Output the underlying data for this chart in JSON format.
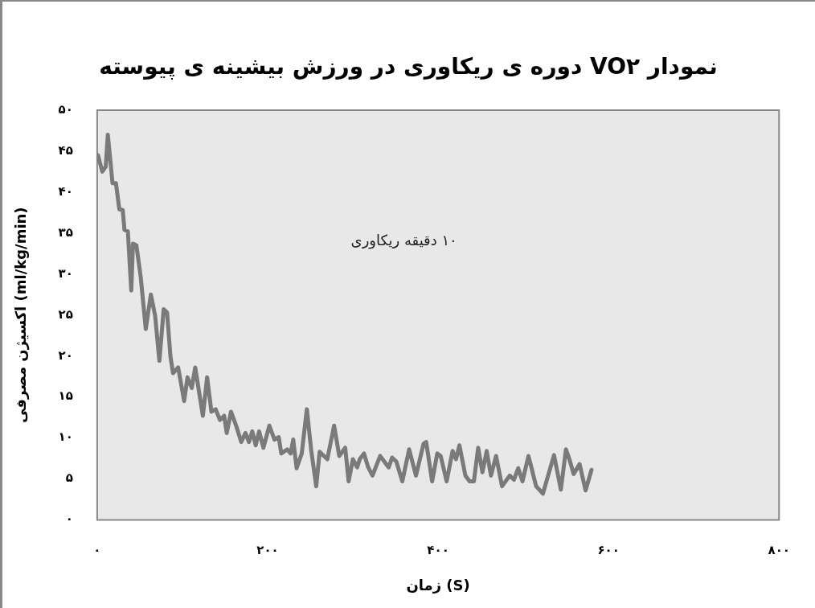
{
  "chart_data": {
    "type": "line",
    "title": "نمودار VO۲ دوره ی ریکاوری در ورزش بیشینه ی پیوسته",
    "xlabel": "زمان (S)",
    "ylabel": "اکسیژن مصرفی (ml/kg/min)",
    "annotations": [
      "۱۰ دقیقه ریکاوری"
    ],
    "xlim": [
      0,
      800
    ],
    "xticks": [
      {
        "value": 0,
        "label": "۰"
      },
      {
        "value": 200,
        "label": "۲۰۰"
      },
      {
        "value": 400,
        "label": "۴۰۰"
      },
      {
        "value": 600,
        "label": "۶۰۰"
      },
      {
        "value": 800,
        "label": "۸۰۰"
      }
    ],
    "ylim": [
      0,
      50
    ],
    "yticks": [
      {
        "value": 0,
        "label": "۰"
      },
      {
        "value": 5,
        "label": "۵"
      },
      {
        "value": 10,
        "label": "۱۰"
      },
      {
        "value": 15,
        "label": "۱۵"
      },
      {
        "value": 20,
        "label": "۲۰"
      },
      {
        "value": 25,
        "label": "۲۵"
      },
      {
        "value": 30,
        "label": "۳۰"
      },
      {
        "value": 35,
        "label": "۳۵"
      },
      {
        "value": 40,
        "label": "۴۰"
      },
      {
        "value": 45,
        "label": "۴۵"
      },
      {
        "value": 50,
        "label": "۵۰"
      }
    ],
    "grid": false,
    "legend": false,
    "marker": "none",
    "line_style": "solid",
    "series": [
      {
        "color": "#7a7a7a",
        "x": [
          1,
          6,
          10,
          12.5,
          18,
          22,
          26,
          30,
          32,
          36,
          40,
          42,
          46,
          51,
          57,
          63,
          68,
          73,
          78,
          82,
          86,
          89,
          95,
          102,
          106,
          111,
          115,
          124,
          129,
          134,
          139,
          144,
          149,
          152,
          157,
          163,
          169,
          174,
          178,
          182,
          186,
          190,
          195,
          202,
          208,
          213,
          216,
          223,
          227,
          230,
          234,
          240,
          246,
          251,
          257,
          261,
          270,
          278,
          284,
          291,
          295,
          300,
          305,
          308,
          313,
          318,
          323,
          332,
          342,
          346,
          351,
          358,
          366,
          374,
          383,
          386,
          393,
          399,
          403,
          410,
          417,
          421,
          425,
          432,
          437,
          442,
          447,
          452,
          457,
          462,
          468,
          475,
          484,
          489,
          494,
          499,
          506,
          515,
          523,
          536,
          544,
          550,
          554,
          559,
          566,
          573,
          580
        ],
        "values": [
          44.5,
          42.5,
          43.1,
          47,
          41.1,
          41.1,
          37.9,
          37.8,
          35.4,
          35.2,
          28,
          33.7,
          33.5,
          29.7,
          23.3,
          27.5,
          24.9,
          19.4,
          25.7,
          25.3,
          19.9,
          17.9,
          18.6,
          14.5,
          17.4,
          16.1,
          18.6,
          12.7,
          17.4,
          13.2,
          13.5,
          12.2,
          12.7,
          10.6,
          13.2,
          11.5,
          9.5,
          10.6,
          9.5,
          10.8,
          9.1,
          10.8,
          8.8,
          11.5,
          9.8,
          10.1,
          8.1,
          8.6,
          8.1,
          9.8,
          6.3,
          8.1,
          13.5,
          8.6,
          4.1,
          8.3,
          7.4,
          11.5,
          7.8,
          8.8,
          4.7,
          7.4,
          6.4,
          7.4,
          8.1,
          6.4,
          5.4,
          7.8,
          6.4,
          7.6,
          7.1,
          4.7,
          8.6,
          5.4,
          9.3,
          9.5,
          4.7,
          8.1,
          7.8,
          4.7,
          8.4,
          7.4,
          9.1,
          5.4,
          4.7,
          4.7,
          8.8,
          5.8,
          8.4,
          5.4,
          7.8,
          4.1,
          5.4,
          4.9,
          6.3,
          4.7,
          7.8,
          4.1,
          3.2,
          7.9,
          3.7,
          8.6,
          7.4,
          5.6,
          6.8,
          3.6,
          6.1
        ]
      }
    ]
  }
}
